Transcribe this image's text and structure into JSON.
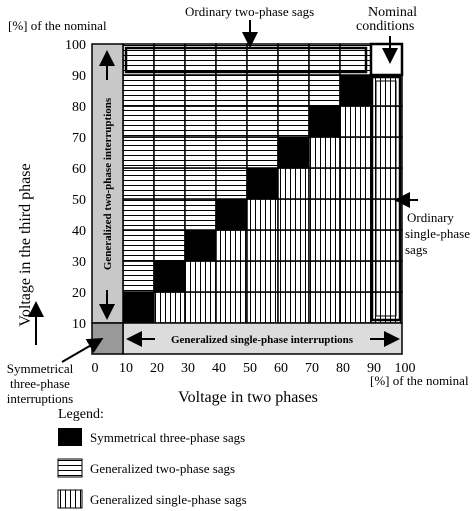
{
  "header": {
    "unit_y": "[%] of the nominal",
    "unit_x": "[%] of the nominal"
  },
  "y_axis": {
    "label": "Voltage in the third phase",
    "ticks": [
      10,
      20,
      30,
      40,
      50,
      60,
      70,
      80,
      90,
      100
    ]
  },
  "x_axis": {
    "label": "Voltage in two phases",
    "ticks": [
      0,
      10,
      20,
      30,
      40,
      50,
      60,
      70,
      80,
      90,
      100
    ]
  },
  "annotations": {
    "ordinary_two_phase": "Ordinary two-phase sags",
    "nominal": [
      "Nominal",
      "conditions"
    ],
    "ordinary_single_phase": [
      "Ordinary",
      "single-phase",
      "sags"
    ],
    "generalized_two_phase_interruptions": "Generalized two-phase interruptions",
    "generalized_single_phase_interruptions": "Generalized single-phase interruptions",
    "symmetrical_interruptions": [
      "Symmetrical",
      "three-phase",
      "interruptions"
    ]
  },
  "legend": {
    "title": "Legend:",
    "items": [
      "Symmetrical three-phase sags",
      "Generalized two-phase sags",
      "Generalized single-phase sags"
    ]
  }
}
